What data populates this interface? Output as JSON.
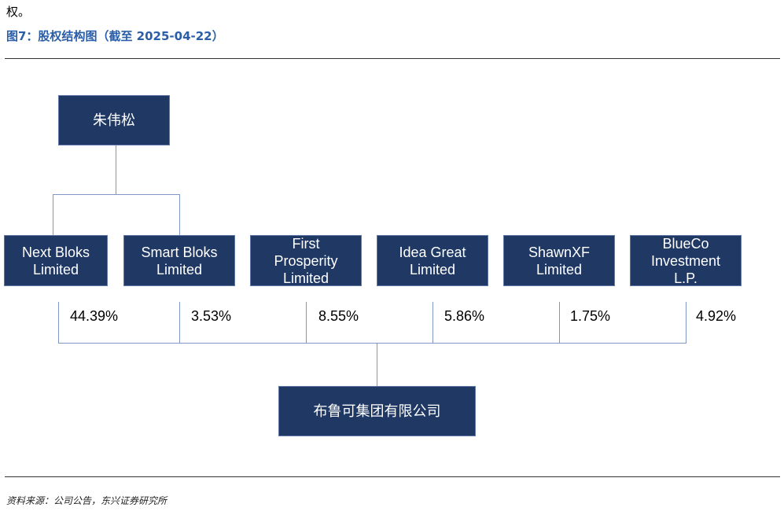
{
  "header": {
    "intro_text": "权。",
    "figure_title": "图7：股权结构图（截至 2025-04-22）"
  },
  "diagram": {
    "top_owner": "朱伟松",
    "shareholders": [
      {
        "name": "Next Bloks\nLimited",
        "stake": "44.39%"
      },
      {
        "name": "Smart Bloks\nLimited",
        "stake": "3.53%"
      },
      {
        "name": "First\nProsperity\nLimited",
        "stake": "8.55%"
      },
      {
        "name": "Idea Great\nLimited",
        "stake": "5.86%"
      },
      {
        "name": "ShawnXF\nLimited",
        "stake": "1.75%"
      },
      {
        "name": "BlueCo\nInvestment\nL.P.",
        "stake": "4.92%"
      }
    ],
    "company": "布鲁可集团有限公司"
  },
  "footer": {
    "source": "资料来源：公司公告，东兴证券研究所"
  },
  "colors": {
    "box_fill": "#1f3864",
    "connector": "#7f97c4",
    "title": "#2a5ea8"
  }
}
